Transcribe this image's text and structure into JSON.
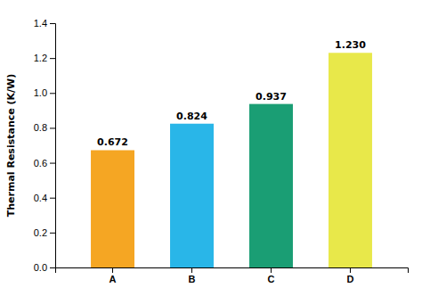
{
  "chart_data": {
    "type": "bar",
    "ylabel": "Thermal Resistance (K/W)",
    "categories": [
      "A",
      "B",
      "C",
      "D"
    ],
    "values": [
      0.672,
      0.824,
      0.937,
      1.23
    ],
    "value_labels": [
      "0.672",
      "0.824",
      "0.937",
      "1.230"
    ],
    "data_labels": true,
    "colors": [
      "#F5A623",
      "#29B6E8",
      "#1A9E74",
      "#E8E84A"
    ],
    "ylim": [
      0,
      1.4
    ],
    "yticks": [
      {
        "value": 0,
        "label": "0.0"
      },
      0.2,
      0.4,
      0.6,
      0.8,
      {
        "value": 1,
        "label": "1.0"
      },
      1.2,
      1.4
    ]
  }
}
